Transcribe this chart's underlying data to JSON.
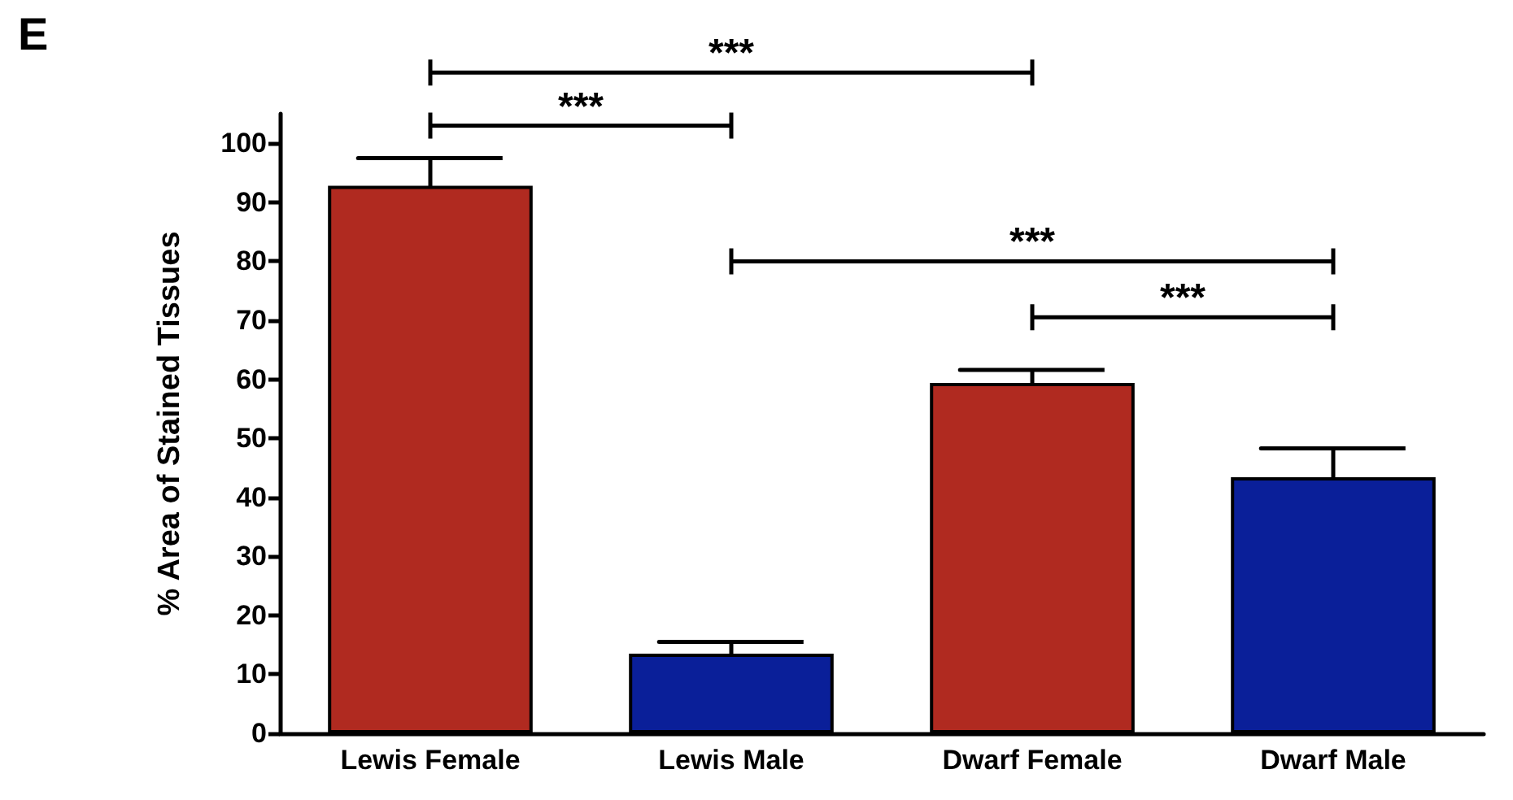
{
  "chart_data": {
    "type": "bar",
    "title": "E",
    "ylabel": "% Area of Stained Tissues",
    "categories": [
      "Lewis Female",
      "Lewis Male",
      "Dwarf Female",
      "Dwarf Male"
    ],
    "values": [
      92.8,
      13.5,
      59.4,
      43.4
    ],
    "colors": [
      "#b02a20",
      "#0a1f99",
      "#b02a20",
      "#0a1f99"
    ],
    "errors": [
      4.7,
      2,
      2.2,
      4.9
    ],
    "ylim": [
      0,
      105
    ],
    "yticks": [
      0,
      10,
      20,
      30,
      40,
      50,
      60,
      70,
      80,
      90,
      100
    ],
    "grid": false,
    "annotations": [
      "***",
      "***",
      "***",
      "***"
    ]
  }
}
